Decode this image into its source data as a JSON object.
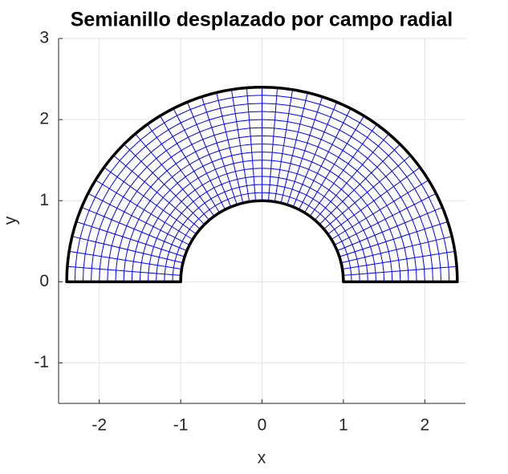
{
  "chart_data": {
    "type": "mesh",
    "title": "Semianillo desplazado por campo radial",
    "x_label": "x",
    "y_label": "y",
    "inner_radius": 1,
    "outer_radius": 2.4,
    "radial_divisions": 14,
    "angular_divisions": 40,
    "mesh_color": "#0000ff",
    "boundary_color": "#000000",
    "xlim": [
      -2.5,
      2.5
    ],
    "xticks": [
      -2,
      -1,
      0,
      1,
      2
    ],
    "ylim": [
      -1.5,
      3
    ],
    "yticks": [
      -1,
      0,
      1,
      2,
      3
    ],
    "grid": true
  }
}
